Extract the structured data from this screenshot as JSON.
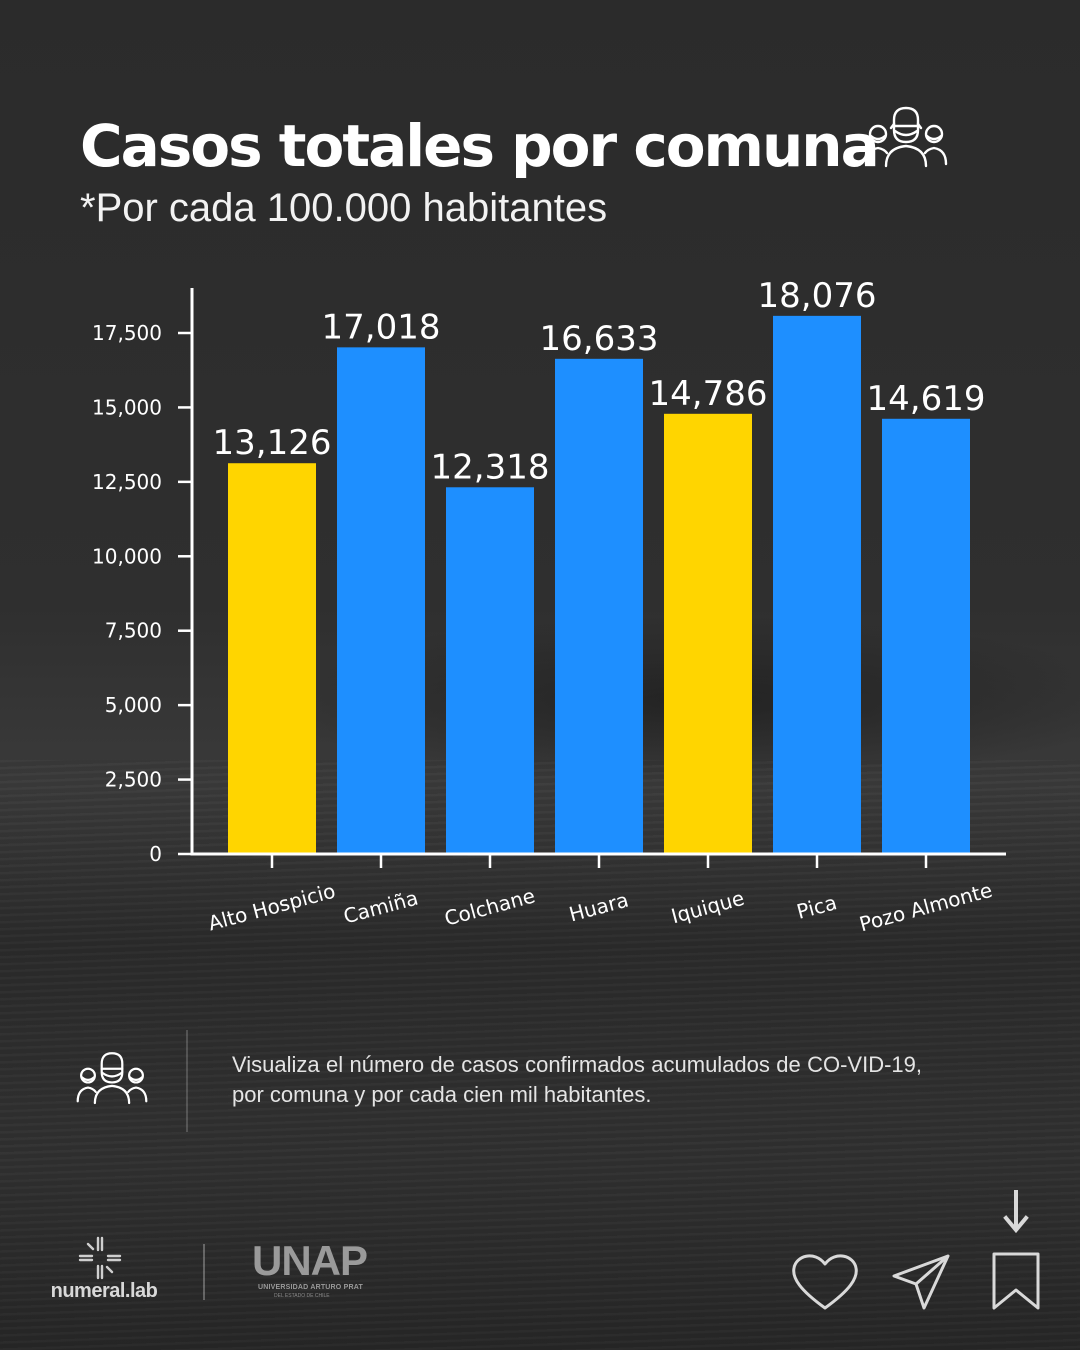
{
  "header": {
    "title": "Casos totales por comuna",
    "subtitle_prefix": "*Por cada ",
    "subtitle_number": "100.000",
    "subtitle_suffix": " habitantes",
    "title_icon": "people-masks-icon"
  },
  "chart_data": {
    "type": "bar",
    "title": "Casos totales por comuna",
    "subtitle": "*Por cada 100.000 habitantes",
    "categories": [
      "Alto Hospicio",
      "Camiña",
      "Colchane",
      "Huara",
      "Iquique",
      "Pica",
      "Pozo Almonte"
    ],
    "values": [
      13126,
      17018,
      12318,
      16633,
      14786,
      18076,
      14619
    ],
    "value_labels": [
      "13,126",
      "17,018",
      "12,318",
      "16,633",
      "14,786",
      "18,076",
      "14,619"
    ],
    "bar_colors": [
      "#FFD500",
      "#1E8FFF",
      "#1E8FFF",
      "#1E8FFF",
      "#FFD500",
      "#1E8FFF",
      "#1E8FFF"
    ],
    "yticks": [
      0,
      2500,
      5000,
      7500,
      10000,
      12500,
      15000,
      17500
    ],
    "ytick_labels": [
      "0",
      "2,500",
      "5,000",
      "7,500",
      "10,000",
      "12,500",
      "15,000",
      "17,500"
    ],
    "ylim": [
      0,
      19000
    ],
    "xlabel": "",
    "ylabel": "",
    "grid": false,
    "legend": "none",
    "xtick_rotation_deg": -15
  },
  "description": {
    "text": "Visualiza el número de casos confirmados acumulados de CO-VID-19, por comuna y por cada cien mil habitantes.",
    "icon": "people-masks-icon"
  },
  "footer": {
    "numeral_logo_text": "numeral.lab",
    "unap_logo_text": "UNAP",
    "unap_logo_subtext": "UNIVERSIDAD ARTURO PRAT",
    "unap_logo_tiny": "DEL ESTADO DE CHILE",
    "actions": [
      "heart-icon",
      "send-icon",
      "bookmark-icon",
      "arrow-down-icon"
    ]
  },
  "colors": {
    "background": "#2e2e2e",
    "accent_yellow": "#FFD500",
    "accent_blue": "#1E8FFF",
    "text": "#FFFFFF"
  }
}
